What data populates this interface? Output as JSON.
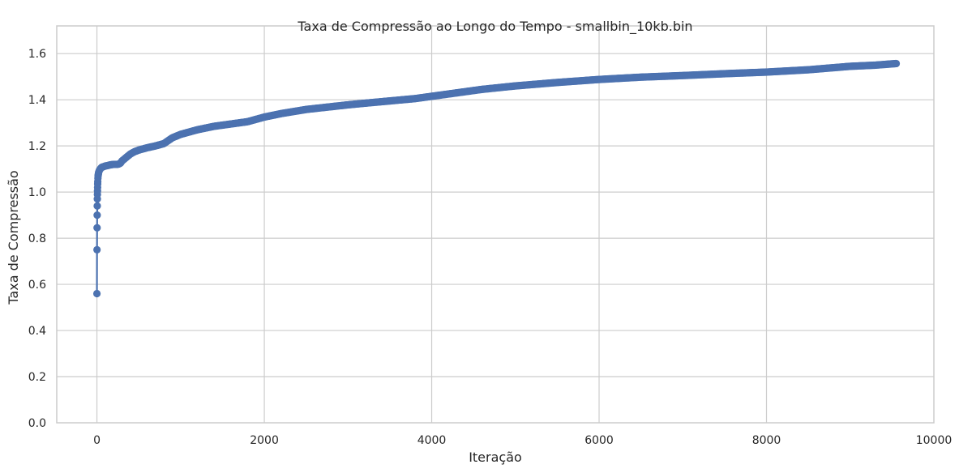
{
  "chart_data": {
    "type": "line",
    "title": "Taxa de Compressão ao Longo do Tempo - smallbin_10kb.bin",
    "xlabel": "Iteração",
    "ylabel": "Taxa de Compressão",
    "xlim": [
      -480,
      10000
    ],
    "ylim": [
      0,
      1.72
    ],
    "x_ticks": [
      0,
      2000,
      4000,
      6000,
      8000,
      10000
    ],
    "x_tick_labels": [
      "0",
      "2000",
      "4000",
      "6000",
      "8000",
      "10000"
    ],
    "y_ticks": [
      0.0,
      0.2,
      0.4,
      0.6,
      0.8,
      1.0,
      1.2,
      1.4,
      1.6
    ],
    "y_tick_labels": [
      "0.0",
      "0.2",
      "0.4",
      "0.6",
      "0.8",
      "1.0",
      "1.2",
      "1.4",
      "1.6"
    ],
    "grid": true,
    "markers": true,
    "line_color": "#4c72b0",
    "marker_color": "#4c72b0",
    "series": [
      {
        "x": [
          0,
          1,
          2,
          3,
          4,
          5,
          6,
          7,
          8,
          9,
          10,
          12,
          14,
          16,
          18,
          20,
          25,
          30,
          40,
          50,
          60,
          80,
          100,
          130,
          160,
          200,
          250,
          280,
          300,
          350,
          400,
          450,
          500,
          600,
          700,
          800,
          900,
          1000,
          1200,
          1400,
          1600,
          1800,
          2000,
          2200,
          2500,
          2800,
          3000,
          3200,
          3500,
          3800,
          4000,
          4300,
          4600,
          5000,
          5500,
          6000,
          6500,
          7000,
          7500,
          8000,
          8500,
          9000,
          9300,
          9550
        ],
        "y": [
          0.56,
          0.75,
          0.845,
          0.9,
          0.94,
          0.97,
          0.99,
          1.005,
          1.02,
          1.035,
          1.045,
          1.06,
          1.07,
          1.075,
          1.08,
          1.085,
          1.09,
          1.095,
          1.1,
          1.105,
          1.108,
          1.11,
          1.113,
          1.115,
          1.118,
          1.12,
          1.12,
          1.125,
          1.135,
          1.15,
          1.165,
          1.175,
          1.182,
          1.192,
          1.2,
          1.21,
          1.235,
          1.25,
          1.27,
          1.285,
          1.295,
          1.305,
          1.325,
          1.34,
          1.358,
          1.37,
          1.378,
          1.385,
          1.395,
          1.405,
          1.415,
          1.43,
          1.445,
          1.46,
          1.475,
          1.488,
          1.498,
          1.505,
          1.513,
          1.52,
          1.53,
          1.545,
          1.55,
          1.557
        ]
      }
    ]
  }
}
